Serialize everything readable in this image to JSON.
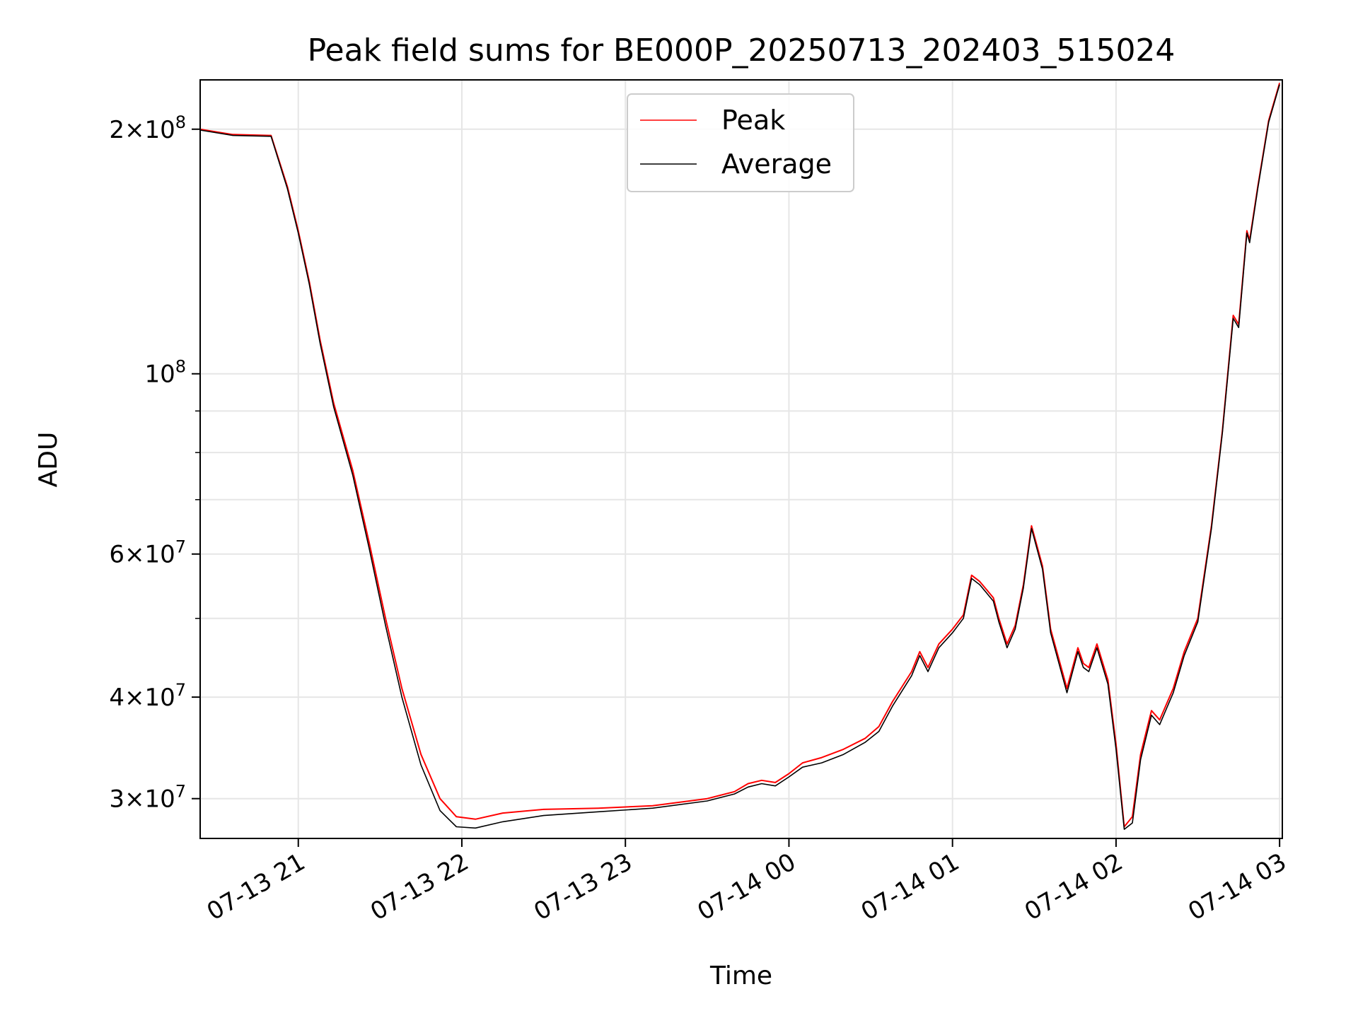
{
  "chart_data": {
    "type": "line",
    "title": "Peak field sums for BE000P_20250713_202403_515024",
    "xlabel": "Time",
    "ylabel": "ADU",
    "yscale": "log",
    "ylim": [
      26800000,
      230000000
    ],
    "xlim": [
      "2025-07-13T20:24:00",
      "2025-07-14T03:01:00"
    ],
    "grid": true,
    "legend_position": "top-center",
    "x_ticks": [
      {
        "t": "2025-07-13T21:00:00",
        "label": "07-13 21"
      },
      {
        "t": "2025-07-13T22:00:00",
        "label": "07-13 22"
      },
      {
        "t": "2025-07-13T23:00:00",
        "label": "07-13 23"
      },
      {
        "t": "2025-07-14T00:00:00",
        "label": "07-14 00"
      },
      {
        "t": "2025-07-14T01:00:00",
        "label": "07-14 01"
      },
      {
        "t": "2025-07-14T02:00:00",
        "label": "07-14 02"
      },
      {
        "t": "2025-07-14T03:00:00",
        "label": "07-14 03"
      }
    ],
    "y_ticks": [
      {
        "value": 30000000,
        "mant": "3",
        "exp": "7"
      },
      {
        "value": 40000000,
        "mant": "4",
        "exp": "7"
      },
      {
        "value": 60000000,
        "mant": "6",
        "exp": "7"
      },
      {
        "value": 100000000,
        "mant": "",
        "exp": "8"
      },
      {
        "value": 200000000,
        "mant": "2",
        "exp": "8"
      }
    ],
    "y_minor": [
      50000000,
      70000000,
      80000000,
      90000000
    ],
    "series": [
      {
        "name": "Peak",
        "color": "#ff0000",
        "points": [
          [
            "2025-07-13T20:24:00",
            200000000
          ],
          [
            "2025-07-13T20:36:00",
            197000000
          ],
          [
            "2025-07-13T20:50:00",
            196500000
          ],
          [
            "2025-07-13T20:56:00",
            170000000
          ],
          [
            "2025-07-13T21:00:00",
            150000000
          ],
          [
            "2025-07-13T21:04:00",
            130000000
          ],
          [
            "2025-07-13T21:08:00",
            110000000
          ],
          [
            "2025-07-13T21:13:00",
            92000000
          ],
          [
            "2025-07-13T21:20:00",
            76000000
          ],
          [
            "2025-07-13T21:26:00",
            62000000
          ],
          [
            "2025-07-13T21:32:00",
            50000000
          ],
          [
            "2025-07-13T21:38:00",
            41000000
          ],
          [
            "2025-07-13T21:45:00",
            34000000
          ],
          [
            "2025-07-13T21:52:00",
            30000000
          ],
          [
            "2025-07-13T21:58:00",
            28500000
          ],
          [
            "2025-07-13T22:05:00",
            28300000
          ],
          [
            "2025-07-13T22:15:00",
            28800000
          ],
          [
            "2025-07-13T22:30:00",
            29100000
          ],
          [
            "2025-07-13T22:50:00",
            29200000
          ],
          [
            "2025-07-13T23:10:00",
            29400000
          ],
          [
            "2025-07-13T23:30:00",
            30000000
          ],
          [
            "2025-07-13T23:40:00",
            30600000
          ],
          [
            "2025-07-13T23:45:00",
            31300000
          ],
          [
            "2025-07-13T23:50:00",
            31600000
          ],
          [
            "2025-07-13T23:55:00",
            31400000
          ],
          [
            "2025-07-14T00:00:00",
            32200000
          ],
          [
            "2025-07-14T00:05:00",
            33200000
          ],
          [
            "2025-07-14T00:12:00",
            33700000
          ],
          [
            "2025-07-14T00:20:00",
            34500000
          ],
          [
            "2025-07-14T00:28:00",
            35600000
          ],
          [
            "2025-07-14T00:33:00",
            36800000
          ],
          [
            "2025-07-14T00:38:00",
            39500000
          ],
          [
            "2025-07-14T00:45:00",
            43000000
          ],
          [
            "2025-07-14T00:48:00",
            45500000
          ],
          [
            "2025-07-14T00:51:00",
            43500000
          ],
          [
            "2025-07-14T00:55:00",
            46500000
          ],
          [
            "2025-07-14T01:00:00",
            48500000
          ],
          [
            "2025-07-14T01:04:00",
            50500000
          ],
          [
            "2025-07-14T01:07:00",
            56500000
          ],
          [
            "2025-07-14T01:10:00",
            55500000
          ],
          [
            "2025-07-14T01:15:00",
            53000000
          ],
          [
            "2025-07-14T01:17:00",
            50000000
          ],
          [
            "2025-07-14T01:20:00",
            46500000
          ],
          [
            "2025-07-14T01:23:00",
            49000000
          ],
          [
            "2025-07-14T01:26:00",
            55000000
          ],
          [
            "2025-07-14T01:29:00",
            65000000
          ],
          [
            "2025-07-14T01:33:00",
            58000000
          ],
          [
            "2025-07-14T01:36:00",
            48500000
          ],
          [
            "2025-07-14T01:42:00",
            41000000
          ],
          [
            "2025-07-14T01:46:00",
            46000000
          ],
          [
            "2025-07-14T01:48:00",
            44000000
          ],
          [
            "2025-07-14T01:50:00",
            43500000
          ],
          [
            "2025-07-14T01:53:00",
            46500000
          ],
          [
            "2025-07-14T01:57:00",
            42000000
          ],
          [
            "2025-07-14T02:00:00",
            35000000
          ],
          [
            "2025-07-14T02:03:00",
            27700000
          ],
          [
            "2025-07-14T02:06:00",
            28500000
          ],
          [
            "2025-07-14T02:09:00",
            34000000
          ],
          [
            "2025-07-14T02:13:00",
            38500000
          ],
          [
            "2025-07-14T02:16:00",
            37500000
          ],
          [
            "2025-07-14T02:21:00",
            41000000
          ],
          [
            "2025-07-14T02:25:00",
            45500000
          ],
          [
            "2025-07-14T02:30:00",
            50000000
          ],
          [
            "2025-07-14T02:35:00",
            65000000
          ],
          [
            "2025-07-14T02:39:00",
            85000000
          ],
          [
            "2025-07-14T02:43:00",
            118000000
          ],
          [
            "2025-07-14T02:45:00",
            115000000
          ],
          [
            "2025-07-14T02:48:00",
            150000000
          ],
          [
            "2025-07-14T02:49:00",
            146000000
          ],
          [
            "2025-07-14T02:52:00",
            170000000
          ],
          [
            "2025-07-14T02:56:00",
            205000000
          ],
          [
            "2025-07-14T03:00:00",
            228000000
          ]
        ]
      },
      {
        "name": "Average",
        "color": "#000000",
        "points": [
          [
            "2025-07-13T20:24:00",
            199500000
          ],
          [
            "2025-07-13T20:36:00",
            196500000
          ],
          [
            "2025-07-13T20:50:00",
            196000000
          ],
          [
            "2025-07-13T20:56:00",
            169000000
          ],
          [
            "2025-07-13T21:00:00",
            149000000
          ],
          [
            "2025-07-13T21:04:00",
            129000000
          ],
          [
            "2025-07-13T21:08:00",
            109000000
          ],
          [
            "2025-07-13T21:13:00",
            91000000
          ],
          [
            "2025-07-13T21:20:00",
            75000000
          ],
          [
            "2025-07-13T21:26:00",
            61000000
          ],
          [
            "2025-07-13T21:32:00",
            49000000
          ],
          [
            "2025-07-13T21:38:00",
            40000000
          ],
          [
            "2025-07-13T21:45:00",
            33000000
          ],
          [
            "2025-07-13T21:52:00",
            29000000
          ],
          [
            "2025-07-13T21:58:00",
            27700000
          ],
          [
            "2025-07-13T22:05:00",
            27600000
          ],
          [
            "2025-07-13T22:15:00",
            28100000
          ],
          [
            "2025-07-13T22:30:00",
            28600000
          ],
          [
            "2025-07-13T22:50:00",
            28900000
          ],
          [
            "2025-07-13T23:10:00",
            29200000
          ],
          [
            "2025-07-13T23:30:00",
            29800000
          ],
          [
            "2025-07-13T23:40:00",
            30400000
          ],
          [
            "2025-07-13T23:45:00",
            31000000
          ],
          [
            "2025-07-13T23:50:00",
            31300000
          ],
          [
            "2025-07-13T23:55:00",
            31100000
          ],
          [
            "2025-07-14T00:00:00",
            31900000
          ],
          [
            "2025-07-14T00:05:00",
            32800000
          ],
          [
            "2025-07-14T00:12:00",
            33200000
          ],
          [
            "2025-07-14T00:20:00",
            34000000
          ],
          [
            "2025-07-14T00:28:00",
            35200000
          ],
          [
            "2025-07-14T00:33:00",
            36300000
          ],
          [
            "2025-07-14T00:38:00",
            39000000
          ],
          [
            "2025-07-14T00:45:00",
            42500000
          ],
          [
            "2025-07-14T00:48:00",
            45000000
          ],
          [
            "2025-07-14T00:51:00",
            43000000
          ],
          [
            "2025-07-14T00:55:00",
            46000000
          ],
          [
            "2025-07-14T01:00:00",
            48000000
          ],
          [
            "2025-07-14T01:04:00",
            50000000
          ],
          [
            "2025-07-14T01:07:00",
            56000000
          ],
          [
            "2025-07-14T01:10:00",
            55000000
          ],
          [
            "2025-07-14T01:15:00",
            52500000
          ],
          [
            "2025-07-14T01:17:00",
            49500000
          ],
          [
            "2025-07-14T01:20:00",
            46000000
          ],
          [
            "2025-07-14T01:23:00",
            48500000
          ],
          [
            "2025-07-14T01:26:00",
            54500000
          ],
          [
            "2025-07-14T01:29:00",
            64500000
          ],
          [
            "2025-07-14T01:33:00",
            57500000
          ],
          [
            "2025-07-14T01:36:00",
            48000000
          ],
          [
            "2025-07-14T01:42:00",
            40500000
          ],
          [
            "2025-07-14T01:46:00",
            45500000
          ],
          [
            "2025-07-14T01:48:00",
            43500000
          ],
          [
            "2025-07-14T01:50:00",
            43000000
          ],
          [
            "2025-07-14T01:53:00",
            46000000
          ],
          [
            "2025-07-14T01:57:00",
            41500000
          ],
          [
            "2025-07-14T02:00:00",
            34500000
          ],
          [
            "2025-07-14T02:03:00",
            27500000
          ],
          [
            "2025-07-14T02:06:00",
            28000000
          ],
          [
            "2025-07-14T02:09:00",
            33500000
          ],
          [
            "2025-07-14T02:13:00",
            38000000
          ],
          [
            "2025-07-14T02:16:00",
            37000000
          ],
          [
            "2025-07-14T02:21:00",
            40500000
          ],
          [
            "2025-07-14T02:25:00",
            45000000
          ],
          [
            "2025-07-14T02:30:00",
            49500000
          ],
          [
            "2025-07-14T02:35:00",
            64500000
          ],
          [
            "2025-07-14T02:39:00",
            84500000
          ],
          [
            "2025-07-14T02:43:00",
            117000000
          ],
          [
            "2025-07-14T02:45:00",
            114000000
          ],
          [
            "2025-07-14T02:48:00",
            149000000
          ],
          [
            "2025-07-14T02:49:00",
            145000000
          ],
          [
            "2025-07-14T02:52:00",
            169000000
          ],
          [
            "2025-07-14T02:56:00",
            204000000
          ],
          [
            "2025-07-14T03:00:00",
            227000000
          ]
        ]
      }
    ]
  }
}
